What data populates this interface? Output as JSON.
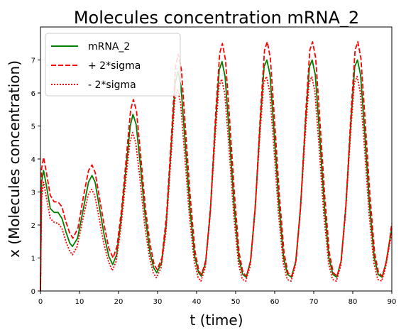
{
  "chart_data": {
    "type": "line",
    "title": "Molecules concentration mRNA_2",
    "xlabel": "t (time)",
    "ylabel": "x (Molecules concentration)",
    "xlim": [
      0,
      90
    ],
    "ylim": [
      0,
      8
    ],
    "xticks": [
      0,
      10,
      20,
      30,
      40,
      50,
      60,
      70,
      80,
      90
    ],
    "yticks": [
      0,
      1,
      2,
      3,
      4,
      5,
      6,
      7
    ],
    "grid": false,
    "legend_position": "top-left",
    "series": [
      {
        "name": "mRNA_2",
        "color": "#008000",
        "style": "solid",
        "points": [
          [
            0,
            0
          ],
          [
            0.3,
            3.3
          ],
          [
            0.8,
            3.65
          ],
          [
            1.5,
            3.2
          ],
          [
            2.5,
            2.5
          ],
          [
            3.5,
            2.38
          ],
          [
            4.5,
            2.38
          ],
          [
            5.5,
            2.2
          ],
          [
            6.5,
            1.8
          ],
          [
            7.5,
            1.45
          ],
          [
            8.2,
            1.35
          ],
          [
            9.5,
            1.6
          ],
          [
            11,
            2.5
          ],
          [
            12.3,
            3.3
          ],
          [
            13.2,
            3.5
          ],
          [
            14,
            3.3
          ],
          [
            15,
            2.6
          ],
          [
            16.3,
            1.7
          ],
          [
            17.5,
            1.05
          ],
          [
            18.5,
            0.8
          ],
          [
            19.5,
            1.1
          ],
          [
            20.7,
            2.2
          ],
          [
            22,
            3.8
          ],
          [
            23,
            5.0
          ],
          [
            23.7,
            5.35
          ],
          [
            24.5,
            5.05
          ],
          [
            25.5,
            3.9
          ],
          [
            26.8,
            2.3
          ],
          [
            28,
            1.2
          ],
          [
            29,
            0.7
          ],
          [
            29.8,
            0.55
          ],
          [
            31,
            0.85
          ],
          [
            32.2,
            2.0
          ],
          [
            33.5,
            4.4
          ],
          [
            34.5,
            6.3
          ],
          [
            35.2,
            6.65
          ],
          [
            36,
            6.2
          ],
          [
            37,
            4.6
          ],
          [
            38.3,
            2.5
          ],
          [
            39.5,
            1.05
          ],
          [
            40.5,
            0.55
          ],
          [
            41.2,
            0.45
          ],
          [
            42.3,
            0.85
          ],
          [
            43.5,
            2.4
          ],
          [
            44.8,
            5.0
          ],
          [
            45.8,
            6.7
          ],
          [
            46.5,
            6.95
          ],
          [
            47.3,
            6.5
          ],
          [
            48.3,
            4.9
          ],
          [
            49.6,
            2.6
          ],
          [
            50.8,
            1.0
          ],
          [
            51.8,
            0.5
          ],
          [
            52.7,
            0.42
          ],
          [
            53.8,
            0.9
          ],
          [
            55,
            2.5
          ],
          [
            56.3,
            5.1
          ],
          [
            57.3,
            6.8
          ],
          [
            58,
            7.0
          ],
          [
            58.8,
            6.55
          ],
          [
            59.8,
            4.9
          ],
          [
            61.1,
            2.6
          ],
          [
            62.3,
            1.0
          ],
          [
            63.3,
            0.5
          ],
          [
            64.3,
            0.42
          ],
          [
            65.4,
            0.9
          ],
          [
            66.6,
            2.5
          ],
          [
            67.9,
            5.1
          ],
          [
            68.9,
            6.8
          ],
          [
            69.6,
            7.0
          ],
          [
            70.4,
            6.55
          ],
          [
            71.4,
            4.9
          ],
          [
            72.7,
            2.6
          ],
          [
            73.9,
            1.0
          ],
          [
            74.9,
            0.5
          ],
          [
            75.9,
            0.42
          ],
          [
            77,
            0.9
          ],
          [
            78.2,
            2.5
          ],
          [
            79.5,
            5.1
          ],
          [
            80.5,
            6.8
          ],
          [
            81.2,
            7.0
          ],
          [
            82,
            6.55
          ],
          [
            83,
            4.9
          ],
          [
            84.3,
            2.6
          ],
          [
            85.5,
            1.0
          ],
          [
            86.5,
            0.5
          ],
          [
            87.5,
            0.42
          ],
          [
            88.5,
            0.85
          ],
          [
            89.3,
            1.4
          ],
          [
            90,
            1.9
          ]
        ]
      },
      {
        "name": "+ 2*sigma",
        "color": "#ff0000",
        "style": "dashed",
        "points": [
          [
            0,
            0
          ],
          [
            0.3,
            3.7
          ],
          [
            0.8,
            4.05
          ],
          [
            1.5,
            3.6
          ],
          [
            2.5,
            2.9
          ],
          [
            3.5,
            2.7
          ],
          [
            4.5,
            2.7
          ],
          [
            5.5,
            2.55
          ],
          [
            6.5,
            2.1
          ],
          [
            7.5,
            1.75
          ],
          [
            8.3,
            1.6
          ],
          [
            9.6,
            1.9
          ],
          [
            11,
            2.85
          ],
          [
            12.3,
            3.65
          ],
          [
            13.2,
            3.82
          ],
          [
            14,
            3.6
          ],
          [
            15,
            2.9
          ],
          [
            16.3,
            2.0
          ],
          [
            17.5,
            1.3
          ],
          [
            18.6,
            1.0
          ],
          [
            19.6,
            1.35
          ],
          [
            20.8,
            2.5
          ],
          [
            22.1,
            4.2
          ],
          [
            23.1,
            5.5
          ],
          [
            23.8,
            5.8
          ],
          [
            24.6,
            5.45
          ],
          [
            25.6,
            4.2
          ],
          [
            26.9,
            2.5
          ],
          [
            28.1,
            1.4
          ],
          [
            29.1,
            0.8
          ],
          [
            29.9,
            0.65
          ],
          [
            31.1,
            1.0
          ],
          [
            32.3,
            2.3
          ],
          [
            33.6,
            4.8
          ],
          [
            34.6,
            6.8
          ],
          [
            35.3,
            7.18
          ],
          [
            36.1,
            6.7
          ],
          [
            37.1,
            5.0
          ],
          [
            38.4,
            2.8
          ],
          [
            39.6,
            1.2
          ],
          [
            40.6,
            0.6
          ],
          [
            41.3,
            0.5
          ],
          [
            42.4,
            0.95
          ],
          [
            43.6,
            2.6
          ],
          [
            44.9,
            5.4
          ],
          [
            45.9,
            7.2
          ],
          [
            46.6,
            7.5
          ],
          [
            47.4,
            7.0
          ],
          [
            48.4,
            5.3
          ],
          [
            49.7,
            2.9
          ],
          [
            50.9,
            1.15
          ],
          [
            51.9,
            0.55
          ],
          [
            52.8,
            0.45
          ],
          [
            53.9,
            0.95
          ],
          [
            55.1,
            2.7
          ],
          [
            56.4,
            5.5
          ],
          [
            57.4,
            7.3
          ],
          [
            58.1,
            7.55
          ],
          [
            58.9,
            7.05
          ],
          [
            59.9,
            5.3
          ],
          [
            61.2,
            2.9
          ],
          [
            62.4,
            1.15
          ],
          [
            63.4,
            0.55
          ],
          [
            64.4,
            0.45
          ],
          [
            65.5,
            0.95
          ],
          [
            66.7,
            2.7
          ],
          [
            68,
            5.5
          ],
          [
            69,
            7.3
          ],
          [
            69.7,
            7.55
          ],
          [
            70.5,
            7.05
          ],
          [
            71.5,
            5.3
          ],
          [
            72.8,
            2.9
          ],
          [
            74,
            1.15
          ],
          [
            75,
            0.55
          ],
          [
            76,
            0.45
          ],
          [
            77.1,
            0.95
          ],
          [
            78.3,
            2.7
          ],
          [
            79.6,
            5.5
          ],
          [
            80.6,
            7.3
          ],
          [
            81.3,
            7.55
          ],
          [
            82.1,
            7.05
          ],
          [
            83.1,
            5.3
          ],
          [
            84.4,
            2.9
          ],
          [
            85.6,
            1.15
          ],
          [
            86.6,
            0.55
          ],
          [
            87.6,
            0.45
          ],
          [
            88.6,
            0.9
          ],
          [
            89.4,
            1.5
          ],
          [
            90,
            2.05
          ]
        ]
      },
      {
        "name": "- 2*sigma",
        "color": "#ff0000",
        "style": "dotted",
        "points": [
          [
            0,
            0
          ],
          [
            0.3,
            2.8
          ],
          [
            0.8,
            3.3
          ],
          [
            1.5,
            2.85
          ],
          [
            2.5,
            2.2
          ],
          [
            3.5,
            2.08
          ],
          [
            4.5,
            2.05
          ],
          [
            5.5,
            1.9
          ],
          [
            6.5,
            1.5
          ],
          [
            7.5,
            1.2
          ],
          [
            8.2,
            1.1
          ],
          [
            9.4,
            1.35
          ],
          [
            10.9,
            2.2
          ],
          [
            12.2,
            2.9
          ],
          [
            13.1,
            3.08
          ],
          [
            13.9,
            2.9
          ],
          [
            14.9,
            2.3
          ],
          [
            16.2,
            1.45
          ],
          [
            17.4,
            0.9
          ],
          [
            18.4,
            0.62
          ],
          [
            19.4,
            0.9
          ],
          [
            20.6,
            1.9
          ],
          [
            21.9,
            3.4
          ],
          [
            22.9,
            4.5
          ],
          [
            23.6,
            4.8
          ],
          [
            24.4,
            4.5
          ],
          [
            25.4,
            3.5
          ],
          [
            26.7,
            2.0
          ],
          [
            27.9,
            1.05
          ],
          [
            28.9,
            0.55
          ],
          [
            29.7,
            0.4
          ],
          [
            30.9,
            0.7
          ],
          [
            32.1,
            1.75
          ],
          [
            33.4,
            4.0
          ],
          [
            34.4,
            5.8
          ],
          [
            35.1,
            6.12
          ],
          [
            35.9,
            5.7
          ],
          [
            36.9,
            4.2
          ],
          [
            38.2,
            2.2
          ],
          [
            39.4,
            0.9
          ],
          [
            40.4,
            0.4
          ],
          [
            41.1,
            0.3
          ],
          [
            42.2,
            0.7
          ],
          [
            43.4,
            2.2
          ],
          [
            44.7,
            4.6
          ],
          [
            45.7,
            6.2
          ],
          [
            46.4,
            6.42
          ],
          [
            47.2,
            6.0
          ],
          [
            48.2,
            4.5
          ],
          [
            49.5,
            2.3
          ],
          [
            50.7,
            0.85
          ],
          [
            51.7,
            0.35
          ],
          [
            52.6,
            0.3
          ],
          [
            53.7,
            0.75
          ],
          [
            54.9,
            2.3
          ],
          [
            56.2,
            4.7
          ],
          [
            57.2,
            6.3
          ],
          [
            57.9,
            6.5
          ],
          [
            58.7,
            6.05
          ],
          [
            59.7,
            4.5
          ],
          [
            61,
            2.3
          ],
          [
            62.2,
            0.85
          ],
          [
            63.2,
            0.35
          ],
          [
            64.2,
            0.3
          ],
          [
            65.3,
            0.75
          ],
          [
            66.5,
            2.3
          ],
          [
            67.8,
            4.7
          ],
          [
            68.8,
            6.3
          ],
          [
            69.5,
            6.5
          ],
          [
            70.3,
            6.05
          ],
          [
            71.3,
            4.5
          ],
          [
            72.6,
            2.3
          ],
          [
            73.8,
            0.85
          ],
          [
            74.8,
            0.35
          ],
          [
            75.8,
            0.3
          ],
          [
            76.9,
            0.75
          ],
          [
            78.1,
            2.3
          ],
          [
            79.4,
            4.7
          ],
          [
            80.4,
            6.3
          ],
          [
            81.1,
            6.5
          ],
          [
            81.9,
            6.05
          ],
          [
            82.9,
            4.5
          ],
          [
            84.2,
            2.3
          ],
          [
            85.4,
            0.85
          ],
          [
            86.4,
            0.35
          ],
          [
            87.4,
            0.3
          ],
          [
            88.4,
            0.7
          ],
          [
            89.2,
            1.25
          ],
          [
            90,
            1.75
          ]
        ]
      }
    ]
  }
}
